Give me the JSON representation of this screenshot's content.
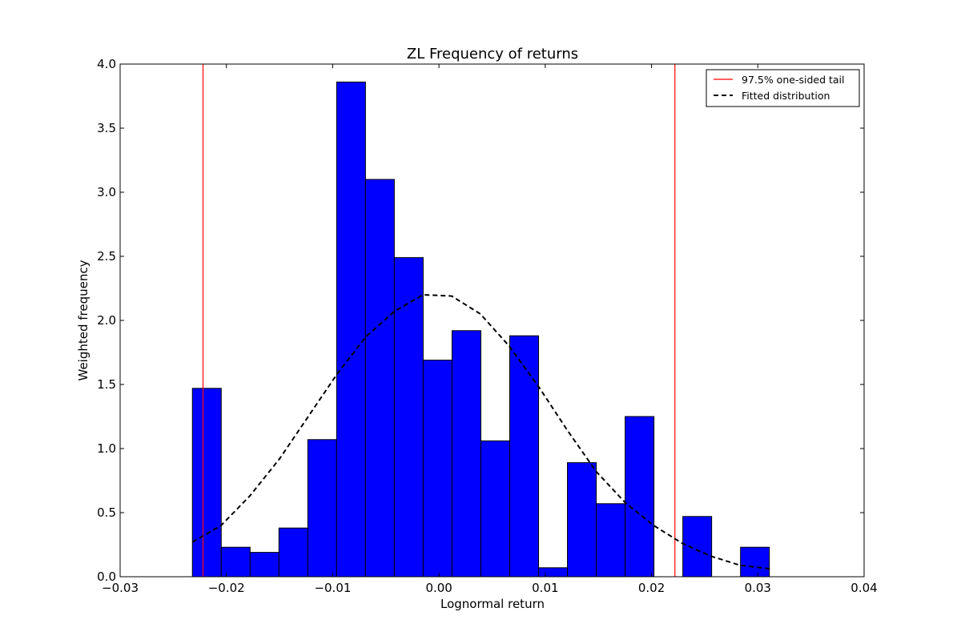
{
  "chart_data": {
    "type": "bar",
    "title": "ZL Frequency of returns",
    "xlabel": "Lognormal return",
    "ylabel": "Weighted frequency",
    "xlim": [
      -0.03,
      0.04
    ],
    "ylim": [
      0.0,
      4.0
    ],
    "x_ticks": [
      -0.03,
      -0.02,
      -0.01,
      0.0,
      0.01,
      0.02,
      0.03,
      0.04
    ],
    "x_tick_labels": [
      "−0.03",
      "−0.02",
      "−0.01",
      "0.00",
      "0.01",
      "0.02",
      "0.03",
      "0.04"
    ],
    "y_ticks": [
      0.0,
      0.5,
      1.0,
      1.5,
      2.0,
      2.5,
      3.0,
      3.5,
      4.0
    ],
    "y_tick_labels": [
      "0.0",
      "0.5",
      "1.0",
      "1.5",
      "2.0",
      "2.5",
      "3.0",
      "3.5",
      "4.0"
    ],
    "grid": false,
    "legend_position": "top-right",
    "histogram": {
      "bin_start": -0.0232,
      "bin_width": 0.0027143,
      "values": [
        1.47,
        0.23,
        0.19,
        0.38,
        1.07,
        3.86,
        3.1,
        2.49,
        1.69,
        1.92,
        1.06,
        1.88,
        0.07,
        0.89,
        0.57,
        1.25,
        0.0,
        0.47,
        0.0,
        0.23
      ],
      "color": "#0000ff",
      "edge_color": "#000000"
    },
    "series": [
      {
        "name": "97.5% one-sided tail",
        "style": "solid",
        "color": "#ff0000",
        "x_positions": [
          -0.0222,
          0.0222
        ]
      },
      {
        "name": "Fitted distribution",
        "style": "dashed",
        "color": "#000000",
        "x": [
          -0.0232,
          -0.0205,
          -0.0178,
          -0.015,
          -0.0123,
          -0.0096,
          -0.0069,
          -0.0042,
          -0.0015,
          0.0012,
          0.0039,
          0.0066,
          0.0094,
          0.0121,
          0.0148,
          0.0175,
          0.0202,
          0.0229,
          0.0256,
          0.0283,
          0.0313
        ],
        "y": [
          0.27,
          0.4,
          0.63,
          0.92,
          1.25,
          1.58,
          1.87,
          2.07,
          2.2,
          2.19,
          2.05,
          1.8,
          1.48,
          1.14,
          0.82,
          0.58,
          0.4,
          0.26,
          0.16,
          0.09,
          0.06
        ]
      }
    ]
  }
}
